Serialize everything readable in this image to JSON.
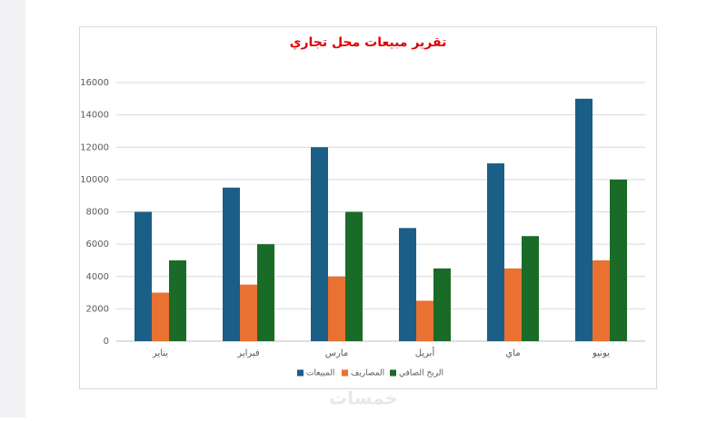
{
  "chart_data": {
    "type": "bar",
    "title": "تقرير مبيعات محل تجاري",
    "categories": [
      "يناير",
      "فبراير",
      "مارس",
      "أبريل",
      "ماي",
      "يونيو"
    ],
    "series": [
      {
        "name": "المبيعات",
        "color": "#1b5e86",
        "values": [
          8000,
          9500,
          12000,
          7000,
          11000,
          15000
        ]
      },
      {
        "name": "المصاريف",
        "color": "#e97132",
        "values": [
          3000,
          3500,
          4000,
          2500,
          4500,
          5000
        ]
      },
      {
        "name": "الربح الصافي",
        "color": "#1a6b27",
        "values": [
          5000,
          6000,
          8000,
          4500,
          6500,
          10000
        ]
      }
    ],
    "ylim": [
      0,
      16000
    ],
    "yticks": [
      0,
      2000,
      4000,
      6000,
      8000,
      10000,
      12000,
      14000,
      16000
    ],
    "grid": true,
    "legend": "bottom"
  },
  "watermark": "خمسات"
}
